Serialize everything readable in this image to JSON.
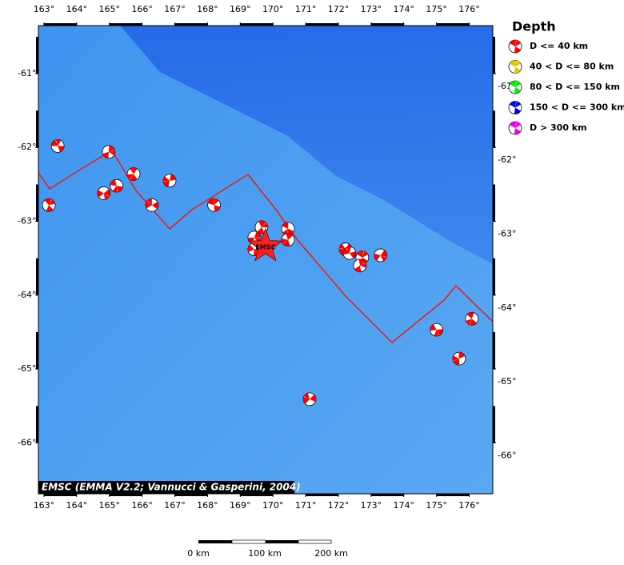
{
  "map": {
    "xlim": [
      162.83,
      176.72
    ],
    "ylim": [
      -66.69,
      -60.35
    ],
    "xticks": [
      {
        "value": 163,
        "label": "163°"
      },
      {
        "value": 164,
        "label": "164°"
      },
      {
        "value": 165,
        "label": "165°"
      },
      {
        "value": 166,
        "label": "166°"
      },
      {
        "value": 167,
        "label": "167°"
      },
      {
        "value": 168,
        "label": "168°"
      },
      {
        "value": 169,
        "label": "169°"
      },
      {
        "value": 170,
        "label": "170°"
      },
      {
        "value": 171,
        "label": "171°"
      },
      {
        "value": 172,
        "label": "172°"
      },
      {
        "value": 173,
        "label": "173°"
      },
      {
        "value": 174,
        "label": "174°"
      },
      {
        "value": 175,
        "label": "175°"
      },
      {
        "value": 176,
        "label": "176°"
      }
    ],
    "yticks": [
      {
        "value": -61,
        "label": "-61°"
      },
      {
        "value": -62,
        "label": "-62°"
      },
      {
        "value": -63,
        "label": "-63°"
      },
      {
        "value": -64,
        "label": "-64°"
      },
      {
        "value": -65,
        "label": "-65°"
      },
      {
        "value": -66,
        "label": "-66°"
      }
    ],
    "events": [
      {
        "lon": 163.42,
        "lat": -61.98
      },
      {
        "lon": 163.15,
        "lat": -62.78
      },
      {
        "lon": 164.98,
        "lat": -62.06
      },
      {
        "lon": 164.83,
        "lat": -62.62
      },
      {
        "lon": 165.22,
        "lat": -62.52
      },
      {
        "lon": 165.74,
        "lat": -62.36
      },
      {
        "lon": 166.84,
        "lat": -62.45
      },
      {
        "lon": 166.3,
        "lat": -62.78
      },
      {
        "lon": 168.2,
        "lat": -62.78
      },
      {
        "lon": 169.65,
        "lat": -63.08
      },
      {
        "lon": 169.43,
        "lat": -63.22
      },
      {
        "lon": 169.43,
        "lat": -63.38
      },
      {
        "lon": 170.46,
        "lat": -63.1
      },
      {
        "lon": 170.46,
        "lat": -63.25
      },
      {
        "lon": 172.22,
        "lat": -63.38
      },
      {
        "lon": 172.34,
        "lat": -63.43
      },
      {
        "lon": 172.73,
        "lat": -63.49
      },
      {
        "lon": 172.66,
        "lat": -63.6
      },
      {
        "lon": 173.29,
        "lat": -63.46
      },
      {
        "lon": 175.0,
        "lat": -64.47
      },
      {
        "lon": 176.08,
        "lat": -64.32
      },
      {
        "lon": 175.69,
        "lat": -64.86
      },
      {
        "lon": 171.12,
        "lat": -65.41
      }
    ],
    "epicenter": {
      "lon": 169.77,
      "lat": -63.34,
      "label": "EMSC"
    },
    "legend": {
      "title": "Depth",
      "items": [
        {
          "name": "D <= 40 km",
          "color": "#ff0000"
        },
        {
          "name": "40 < D <= 80 km",
          "color": "#e0c800"
        },
        {
          "name": "80 < D <= 150 km",
          "color": "#00ee00"
        },
        {
          "name": "150 < D <= 300 km",
          "color": "#0000ee"
        },
        {
          "name": "D > 300 km",
          "color": "#ee00ee"
        }
      ]
    },
    "credit": "EMSC (EMMA V2.2; Vannucci & Gasperini, 2004)",
    "scale": {
      "labels": [
        "0 km",
        "100 km",
        "200 km"
      ]
    }
  }
}
